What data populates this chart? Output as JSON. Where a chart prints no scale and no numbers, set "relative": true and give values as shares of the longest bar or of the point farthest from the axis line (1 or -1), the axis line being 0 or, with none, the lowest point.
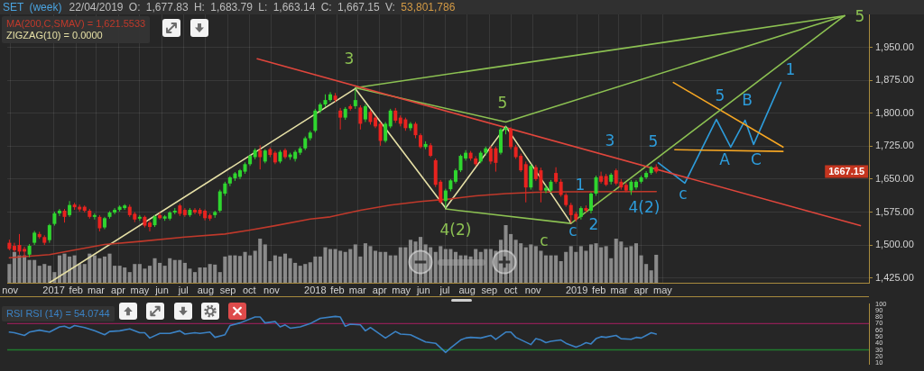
{
  "chart_data": [
    {
      "type": "candlestick",
      "title": "SET (week)",
      "subtitle": "22/04/2019 O: 1,677.83 H: 1,683.79 L: 1,663.14 C: 1,667.15 V: 53,801,786",
      "x": [
        "2016-10-31",
        "2016-11-07",
        "2016-11-14",
        "2016-11-21",
        "2016-11-28",
        "2016-12-05",
        "2016-12-12",
        "2016-12-19",
        "2016-12-26",
        "2017-01-02",
        "2017-01-09",
        "2017-01-16",
        "2017-01-23",
        "2017-01-30",
        "2017-02-06",
        "2017-02-13",
        "2017-02-20",
        "2017-02-27",
        "2017-03-06",
        "2017-03-13",
        "2017-03-20",
        "2017-03-27",
        "2017-04-03",
        "2017-04-10",
        "2017-04-17",
        "2017-04-24",
        "2017-05-01",
        "2017-05-08",
        "2017-05-15",
        "2017-05-22",
        "2017-05-29",
        "2017-06-05",
        "2017-06-12",
        "2017-06-19",
        "2017-06-26",
        "2017-07-03",
        "2017-07-10",
        "2017-07-17",
        "2017-07-24",
        "2017-07-31",
        "2017-08-07",
        "2017-08-14",
        "2017-08-21",
        "2017-08-28",
        "2017-09-04",
        "2017-09-11",
        "2017-09-18",
        "2017-09-25",
        "2017-10-02",
        "2017-10-09",
        "2017-10-16",
        "2017-10-23",
        "2017-10-30",
        "2017-11-06",
        "2017-11-13",
        "2017-11-20",
        "2017-11-27",
        "2017-12-04",
        "2017-12-11",
        "2017-12-18",
        "2017-12-25",
        "2018-01-01",
        "2018-01-08",
        "2018-01-15",
        "2018-01-22",
        "2018-01-29",
        "2018-02-05",
        "2018-02-12",
        "2018-02-19",
        "2018-02-26",
        "2018-03-05",
        "2018-03-12",
        "2018-03-19",
        "2018-03-26",
        "2018-04-02",
        "2018-04-09",
        "2018-04-16",
        "2018-04-23",
        "2018-04-30",
        "2018-05-07",
        "2018-05-14",
        "2018-05-21",
        "2018-05-28",
        "2018-06-04",
        "2018-06-11",
        "2018-06-18",
        "2018-06-25",
        "2018-07-02",
        "2018-07-09",
        "2018-07-16",
        "2018-07-23",
        "2018-07-30",
        "2018-08-06",
        "2018-08-13",
        "2018-08-20",
        "2018-08-27",
        "2018-09-03",
        "2018-09-10",
        "2018-09-17",
        "2018-09-24",
        "2018-10-01",
        "2018-10-08",
        "2018-10-15",
        "2018-10-22",
        "2018-10-29",
        "2018-11-05",
        "2018-11-12",
        "2018-11-19",
        "2018-11-26",
        "2018-12-03",
        "2018-12-10",
        "2018-12-17",
        "2018-12-24",
        "2018-12-31",
        "2019-01-07",
        "2019-01-14",
        "2019-01-21",
        "2019-01-28",
        "2019-02-04",
        "2019-02-11",
        "2019-02-18",
        "2019-02-25",
        "2019-03-04",
        "2019-03-11",
        "2019-03-18",
        "2019-03-25",
        "2019-04-01",
        "2019-04-08",
        "2019-04-15",
        "2019-04-22"
      ],
      "ohlc": [
        [
          1505,
          1512,
          1488,
          1491
        ],
        [
          1498,
          1505,
          1484,
          1488
        ],
        [
          1500,
          1525,
          1478,
          1485
        ],
        [
          1491,
          1496,
          1472,
          1485
        ],
        [
          1478,
          1502,
          1472,
          1498
        ],
        [
          1505,
          1532,
          1500,
          1528
        ],
        [
          1525,
          1530,
          1514,
          1518
        ],
        [
          1518,
          1522,
          1500,
          1505
        ],
        [
          1511,
          1548,
          1505,
          1545
        ],
        [
          1548,
          1576,
          1544,
          1572
        ],
        [
          1572,
          1582,
          1566,
          1578
        ],
        [
          1578,
          1582,
          1551,
          1564
        ],
        [
          1568,
          1600,
          1564,
          1591
        ],
        [
          1592,
          1596,
          1580,
          1586
        ],
        [
          1587,
          1592,
          1576,
          1581
        ],
        [
          1587,
          1590,
          1574,
          1578
        ],
        [
          1578,
          1582,
          1560,
          1564
        ],
        [
          1564,
          1572,
          1558,
          1568
        ],
        [
          1564,
          1568,
          1531,
          1538
        ],
        [
          1540,
          1564,
          1536,
          1561
        ],
        [
          1564,
          1577,
          1560,
          1574
        ],
        [
          1574,
          1584,
          1570,
          1580
        ],
        [
          1580,
          1590,
          1576,
          1587
        ],
        [
          1584,
          1593,
          1580,
          1590
        ],
        [
          1587,
          1592,
          1564,
          1568
        ],
        [
          1571,
          1575,
          1552,
          1558
        ],
        [
          1560,
          1568,
          1555,
          1564
        ],
        [
          1564,
          1567,
          1540,
          1544
        ],
        [
          1551,
          1555,
          1531,
          1541
        ],
        [
          1545,
          1568,
          1541,
          1565
        ],
        [
          1568,
          1574,
          1558,
          1561
        ],
        [
          1560,
          1568,
          1555,
          1565
        ],
        [
          1560,
          1577,
          1556,
          1574
        ],
        [
          1574,
          1584,
          1570,
          1578
        ],
        [
          1590,
          1594,
          1566,
          1571
        ],
        [
          1580,
          1584,
          1564,
          1568
        ],
        [
          1568,
          1584,
          1564,
          1580
        ],
        [
          1580,
          1584,
          1570,
          1574
        ],
        [
          1580,
          1584,
          1566,
          1571
        ],
        [
          1578,
          1581,
          1556,
          1561
        ],
        [
          1568,
          1572,
          1555,
          1560
        ],
        [
          1568,
          1578,
          1562,
          1575
        ],
        [
          1578,
          1626,
          1574,
          1622
        ],
        [
          1617,
          1644,
          1612,
          1640
        ],
        [
          1640,
          1657,
          1634,
          1654
        ],
        [
          1652,
          1666,
          1646,
          1663
        ],
        [
          1655,
          1673,
          1650,
          1670
        ],
        [
          1667,
          1688,
          1662,
          1684
        ],
        [
          1684,
          1706,
          1680,
          1703
        ],
        [
          1700,
          1720,
          1695,
          1716
        ],
        [
          1716,
          1727,
          1672,
          1700
        ],
        [
          1690,
          1718,
          1686,
          1715
        ],
        [
          1718,
          1722,
          1700,
          1705
        ],
        [
          1710,
          1714,
          1684,
          1688
        ],
        [
          1690,
          1716,
          1686,
          1712
        ],
        [
          1716,
          1720,
          1696,
          1700
        ],
        [
          1700,
          1710,
          1694,
          1706
        ],
        [
          1696,
          1716,
          1690,
          1712
        ],
        [
          1710,
          1724,
          1705,
          1720
        ],
        [
          1720,
          1747,
          1716,
          1743
        ],
        [
          1743,
          1760,
          1738,
          1756
        ],
        [
          1760,
          1810,
          1756,
          1806
        ],
        [
          1806,
          1824,
          1800,
          1820
        ],
        [
          1820,
          1843,
          1814,
          1830
        ],
        [
          1830,
          1848,
          1826,
          1843
        ],
        [
          1840,
          1846,
          1826,
          1830
        ],
        [
          1806,
          1812,
          1763,
          1790
        ],
        [
          1790,
          1814,
          1785,
          1810
        ],
        [
          1816,
          1820,
          1806,
          1810
        ],
        [
          1816,
          1856,
          1810,
          1830
        ],
        [
          1813,
          1818,
          1763,
          1776
        ],
        [
          1786,
          1820,
          1780,
          1816
        ],
        [
          1803,
          1808,
          1774,
          1780
        ],
        [
          1790,
          1794,
          1766,
          1770
        ],
        [
          1776,
          1780,
          1726,
          1737
        ],
        [
          1737,
          1780,
          1733,
          1776
        ],
        [
          1770,
          1810,
          1766,
          1806
        ],
        [
          1806,
          1812,
          1778,
          1783
        ],
        [
          1790,
          1795,
          1770,
          1776
        ],
        [
          1786,
          1790,
          1760,
          1766
        ],
        [
          1766,
          1780,
          1760,
          1776
        ],
        [
          1776,
          1780,
          1743,
          1750
        ],
        [
          1750,
          1754,
          1720,
          1723
        ],
        [
          1723,
          1736,
          1718,
          1730
        ],
        [
          1727,
          1732,
          1700,
          1703
        ],
        [
          1693,
          1697,
          1632,
          1637
        ],
        [
          1644,
          1648,
          1594,
          1597
        ],
        [
          1600,
          1628,
          1584,
          1624
        ],
        [
          1627,
          1650,
          1622,
          1647
        ],
        [
          1644,
          1674,
          1640,
          1670
        ],
        [
          1670,
          1706,
          1666,
          1703
        ],
        [
          1697,
          1716,
          1692,
          1710
        ],
        [
          1710,
          1714,
          1692,
          1697
        ],
        [
          1697,
          1702,
          1680,
          1684
        ],
        [
          1690,
          1714,
          1686,
          1710
        ],
        [
          1710,
          1724,
          1704,
          1720
        ],
        [
          1720,
          1726,
          1684,
          1690
        ],
        [
          1720,
          1724,
          1667,
          1687
        ],
        [
          1710,
          1766,
          1706,
          1763
        ],
        [
          1762,
          1770,
          1752,
          1767
        ],
        [
          1763,
          1768,
          1718,
          1723
        ],
        [
          1723,
          1728,
          1696,
          1700
        ],
        [
          1703,
          1708,
          1666,
          1670
        ],
        [
          1684,
          1690,
          1597,
          1631
        ],
        [
          1631,
          1684,
          1626,
          1680
        ],
        [
          1677,
          1682,
          1646,
          1650
        ],
        [
          1670,
          1676,
          1597,
          1624
        ],
        [
          1624,
          1636,
          1618,
          1630
        ],
        [
          1624,
          1648,
          1620,
          1644
        ],
        [
          1664,
          1677,
          1640,
          1644
        ],
        [
          1644,
          1650,
          1610,
          1614
        ],
        [
          1614,
          1618,
          1587,
          1591
        ],
        [
          1591,
          1596,
          1550,
          1568
        ],
        [
          1571,
          1576,
          1553,
          1558
        ],
        [
          1564,
          1588,
          1558,
          1584
        ],
        [
          1584,
          1590,
          1574,
          1578
        ],
        [
          1578,
          1620,
          1572,
          1617
        ],
        [
          1617,
          1658,
          1612,
          1654
        ],
        [
          1657,
          1667,
          1640,
          1644
        ],
        [
          1657,
          1662,
          1634,
          1637
        ],
        [
          1644,
          1664,
          1638,
          1660
        ],
        [
          1670,
          1674,
          1636,
          1640
        ],
        [
          1644,
          1650,
          1626,
          1631
        ],
        [
          1637,
          1642,
          1620,
          1624
        ],
        [
          1624,
          1648,
          1614,
          1644
        ],
        [
          1631,
          1648,
          1626,
          1644
        ],
        [
          1644,
          1658,
          1640,
          1654
        ],
        [
          1654,
          1668,
          1650,
          1664
        ],
        [
          1664,
          1680,
          1660,
          1677
        ],
        [
          1677.83,
          1683.79,
          1663.14,
          1667.15
        ]
      ],
      "colors": [
        "#e8231f",
        "#e8231f",
        "#e8231f",
        "#e8231f",
        "#2fd62f",
        "#2fd62f",
        "#e8231f",
        "#e8231f",
        "#2fd62f",
        "#2fd62f",
        "#2fd62f",
        "#e8231f",
        "#2fd62f",
        "#e8231f",
        "#e8231f",
        "#e8231f",
        "#e8231f",
        "#2fd62f",
        "#e8231f",
        "#2fd62f",
        "#2fd62f",
        "#2fd62f",
        "#2fd62f",
        "#2fd62f",
        "#e8231f",
        "#e8231f",
        "#2fd62f",
        "#e8231f",
        "#e8231f",
        "#2fd62f",
        "#e8231f",
        "#2fd62f",
        "#2fd62f",
        "#2fd62f",
        "#e8231f",
        "#e8231f",
        "#2fd62f",
        "#e8231f",
        "#e8231f",
        "#e8231f",
        "#e8231f",
        "#2fd62f",
        "#2fd62f",
        "#2fd62f",
        "#2fd62f",
        "#2fd62f",
        "#2fd62f",
        "#2fd62f",
        "#2fd62f",
        "#2fd62f",
        "#e8231f",
        "#2fd62f",
        "#e8231f",
        "#e8231f",
        "#2fd62f",
        "#e8231f",
        "#2fd62f",
        "#2fd62f",
        "#2fd62f",
        "#2fd62f",
        "#2fd62f",
        "#2fd62f",
        "#2fd62f",
        "#2fd62f",
        "#2fd62f",
        "#e8231f",
        "#e8231f",
        "#2fd62f",
        "#e8231f",
        "#2fd62f",
        "#e8231f",
        "#2fd62f",
        "#e8231f",
        "#e8231f",
        "#e8231f",
        "#2fd62f",
        "#2fd62f",
        "#e8231f",
        "#e8231f",
        "#e8231f",
        "#2fd62f",
        "#e8231f",
        "#e8231f",
        "#2fd62f",
        "#e8231f",
        "#e8231f",
        "#e8231f",
        "#2fd62f",
        "#2fd62f",
        "#2fd62f",
        "#2fd62f",
        "#2fd62f",
        "#e8231f",
        "#e8231f",
        "#2fd62f",
        "#2fd62f",
        "#e8231f",
        "#e8231f",
        "#2fd62f",
        "#2fd62f",
        "#e8231f",
        "#e8231f",
        "#e8231f",
        "#e8231f",
        "#2fd62f",
        "#e8231f",
        "#e8231f",
        "#2fd62f",
        "#2fd62f",
        "#e8231f",
        "#e8231f",
        "#e8231f",
        "#e8231f",
        "#e8231f",
        "#2fd62f",
        "#e8231f",
        "#2fd62f",
        "#2fd62f",
        "#e8231f",
        "#e8231f",
        "#2fd62f",
        "#e8231f",
        "#e8231f",
        "#e8231f",
        "#2fd62f",
        "#2fd62f",
        "#2fd62f",
        "#2fd62f",
        "#2fd62f",
        "#e8231f"
      ],
      "series": [
        {
          "type": "line",
          "name": "MA(200,C,SMAV) = 1,621.5533",
          "color": "#c0392b",
          "x": [
            "2016-10-31",
            "2016-12-26",
            "2017-03-13",
            "2017-05-01",
            "2017-07-03",
            "2017-08-28",
            "2017-10-02",
            "2017-11-06",
            "2017-12-25",
            "2018-01-22",
            "2018-03-05",
            "2018-04-16",
            "2018-05-28",
            "2018-07-09",
            "2018-08-13",
            "2018-09-24",
            "2018-11-05",
            "2018-12-17",
            "2019-04-22"
          ],
          "values": [
            1471,
            1478,
            1501,
            1508,
            1518,
            1525,
            1534,
            1544,
            1559,
            1564,
            1579,
            1591,
            1599,
            1605,
            1612,
            1617,
            1620,
            1621,
            1621.5533
          ]
        },
        {
          "type": "line",
          "name": "ZIGZAG(10) = 0.0000",
          "color": "#e6e0a6",
          "x": [
            "2016-12-26",
            "2018-02-26",
            "2018-07-02",
            "2018-09-24",
            "2018-12-24"
          ],
          "values": [
            1414,
            1856,
            1584,
            1770,
            1550
          ]
        },
        {
          "type": "line",
          "color": "#e0463c",
          "x": [
            "2017-10-12",
            "2020-02-01"
          ],
          "values": [
            1924,
            1544
          ]
        },
        {
          "type": "line",
          "color": "#8cc152",
          "x": [
            "2018-02-26",
            "2020-01-10"
          ],
          "values": [
            1858,
            2022
          ]
        },
        {
          "type": "line",
          "color": "#8cc152",
          "x": [
            "2018-02-26",
            "2018-09-24",
            "2020-01-10"
          ],
          "values": [
            1858,
            1780,
            2022
          ]
        },
        {
          "type": "line",
          "color": "#8cc152",
          "x": [
            "2018-07-02",
            "2018-12-24",
            "2020-01-10"
          ],
          "values": [
            1582,
            1549,
            2022
          ]
        },
        {
          "type": "line",
          "color": "#f5a623",
          "x": [
            "2019-05-16",
            "2019-10-16"
          ],
          "values": [
            1870,
            1723
          ]
        },
        {
          "type": "line",
          "color": "#f5a623",
          "x": [
            "2019-05-18",
            "2019-10-16"
          ],
          "values": [
            1717,
            1713
          ]
        },
        {
          "type": "line",
          "color": "#2d9cdb",
          "x": [
            "2019-04-25",
            "2019-06-01",
            "2019-07-15",
            "2019-08-04",
            "2019-08-24",
            "2019-09-05",
            "2019-10-13"
          ],
          "values": [
            1687,
            1641,
            1786,
            1723,
            1784,
            1729,
            1870
          ]
        }
      ],
      "xlim": [
        "2016-10-28",
        "2020-02-13"
      ],
      "xticks": [
        {
          "value": "2016-11-01",
          "label": "nov"
        },
        {
          "value": "2017-01-01",
          "label": "2017"
        },
        {
          "value": "2017-02-01",
          "label": "feb"
        },
        {
          "value": "2017-03-01",
          "label": "mar"
        },
        {
          "value": "2017-04-01",
          "label": "apr"
        },
        {
          "value": "2017-05-01",
          "label": "may"
        },
        {
          "value": "2017-06-01",
          "label": "jun"
        },
        {
          "value": "2017-07-01",
          "label": "jul"
        },
        {
          "value": "2017-08-01",
          "label": "aug"
        },
        {
          "value": "2017-09-01",
          "label": "sep"
        },
        {
          "value": "2017-10-01",
          "label": "oct"
        },
        {
          "value": "2017-11-01",
          "label": "nov"
        },
        {
          "value": "2018-01-01",
          "label": "2018"
        },
        {
          "value": "2018-02-01",
          "label": "feb"
        },
        {
          "value": "2018-03-01",
          "label": "mar"
        },
        {
          "value": "2018-04-01",
          "label": "apr"
        },
        {
          "value": "2018-05-01",
          "label": "may"
        },
        {
          "value": "2018-06-01",
          "label": "jun"
        },
        {
          "value": "2018-07-01",
          "label": "jul"
        },
        {
          "value": "2018-08-01",
          "label": "aug"
        },
        {
          "value": "2018-09-01",
          "label": "sep"
        },
        {
          "value": "2018-10-01",
          "label": "oct"
        },
        {
          "value": "2018-11-01",
          "label": "nov"
        },
        {
          "value": "2019-01-01",
          "label": "2019"
        },
        {
          "value": "2019-02-01",
          "label": "feb"
        },
        {
          "value": "2019-03-01",
          "label": "mar"
        },
        {
          "value": "2019-04-01",
          "label": "apr"
        },
        {
          "value": "2019-05-01",
          "label": "may"
        }
      ],
      "ylim": [
        1414,
        2025
      ],
      "yticks": [
        {
          "value": 1425,
          "label": "1,425.00"
        },
        {
          "value": 1500,
          "label": "1,500.00"
        },
        {
          "value": 1575,
          "label": "1,575.00"
        },
        {
          "value": 1650,
          "label": "1,650.00"
        },
        {
          "value": 1725,
          "label": "1,725.00"
        },
        {
          "value": 1800,
          "label": "1,800.00"
        },
        {
          "value": 1875,
          "label": "1,875.00"
        },
        {
          "value": 1950,
          "label": "1,950.00"
        }
      ],
      "grid": true,
      "legend": "top left",
      "annotations": [
        "3",
        "5",
        "4(2)",
        "c",
        "5",
        "1",
        "c",
        "2",
        "3",
        "4(2)",
        "5",
        "c",
        "5",
        "B",
        "A",
        "C",
        "1",
        "1667.15"
      ]
    },
    {
      "type": "bar",
      "relative": true,
      "color": "#8a8a8a",
      "tick_labels": false,
      "xlim": [
        "2016-10-28",
        "2020-02-13"
      ],
      "x": [
        "2016-10-31",
        "2016-11-07",
        "2016-11-14",
        "2016-11-21",
        "2016-11-28",
        "2016-12-05",
        "2016-12-12",
        "2016-12-19",
        "2016-12-26",
        "2017-01-02",
        "2017-01-09",
        "2017-01-16",
        "2017-01-23",
        "2017-01-30",
        "2017-02-06",
        "2017-02-13",
        "2017-02-20",
        "2017-02-27",
        "2017-03-06",
        "2017-03-13",
        "2017-03-20",
        "2017-03-27",
        "2017-04-03",
        "2017-04-10",
        "2017-04-17",
        "2017-04-24",
        "2017-05-01",
        "2017-05-08",
        "2017-05-15",
        "2017-05-22",
        "2017-05-29",
        "2017-06-05",
        "2017-06-12",
        "2017-06-19",
        "2017-06-26",
        "2017-07-03",
        "2017-07-10",
        "2017-07-17",
        "2017-07-24",
        "2017-07-31",
        "2017-08-07",
        "2017-08-14",
        "2017-08-21",
        "2017-08-28",
        "2017-09-04",
        "2017-09-11",
        "2017-09-18",
        "2017-09-25",
        "2017-10-02",
        "2017-10-09",
        "2017-10-16",
        "2017-10-23",
        "2017-10-30",
        "2017-11-06",
        "2017-11-13",
        "2017-11-20",
        "2017-11-27",
        "2017-12-04",
        "2017-12-11",
        "2017-12-18",
        "2017-12-25",
        "2018-01-01",
        "2018-01-08",
        "2018-01-15",
        "2018-01-22",
        "2018-01-29",
        "2018-02-05",
        "2018-02-12",
        "2018-02-19",
        "2018-02-26",
        "2018-03-05",
        "2018-03-12",
        "2018-03-19",
        "2018-03-26",
        "2018-04-02",
        "2018-04-09",
        "2018-04-16",
        "2018-04-23",
        "2018-04-30",
        "2018-05-07",
        "2018-05-14",
        "2018-05-21",
        "2018-05-28",
        "2018-06-04",
        "2018-06-11",
        "2018-06-18",
        "2018-06-25",
        "2018-07-02",
        "2018-07-09",
        "2018-07-16",
        "2018-07-23",
        "2018-07-30",
        "2018-08-06",
        "2018-08-13",
        "2018-08-20",
        "2018-08-27",
        "2018-09-03",
        "2018-09-10",
        "2018-09-17",
        "2018-09-24",
        "2018-10-01",
        "2018-10-08",
        "2018-10-15",
        "2018-10-22",
        "2018-10-29",
        "2018-11-05",
        "2018-11-12",
        "2018-11-19",
        "2018-11-26",
        "2018-12-03",
        "2018-12-10",
        "2018-12-17",
        "2018-12-24",
        "2018-12-31",
        "2019-01-07",
        "2019-01-14",
        "2019-01-21",
        "2019-01-28",
        "2019-02-04",
        "2019-02-11",
        "2019-02-18",
        "2019-02-25",
        "2019-03-04",
        "2019-03-11",
        "2019-03-18",
        "2019-03-25",
        "2019-04-01",
        "2019-04-08",
        "2019-04-15",
        "2019-04-22"
      ],
      "values": [
        0.32,
        0.53,
        0.47,
        0.47,
        0.39,
        0.39,
        0.29,
        0.32,
        0.29,
        0.18,
        0.47,
        0.5,
        0.45,
        0.47,
        0.32,
        0.32,
        0.5,
        0.47,
        0.42,
        0.45,
        0.5,
        0.29,
        0.29,
        0.26,
        0.18,
        0.32,
        0.32,
        0.24,
        0.29,
        0.42,
        0.34,
        0.29,
        0.42,
        0.39,
        0.39,
        0.34,
        0.24,
        0.18,
        0.26,
        0.26,
        0.32,
        0.31,
        0.18,
        0.45,
        0.47,
        0.47,
        0.46,
        0.53,
        0.47,
        0.55,
        0.76,
        0.66,
        0.37,
        0.47,
        0.45,
        0.5,
        0.42,
        0.34,
        0.29,
        0.32,
        0.35,
        0.45,
        0.45,
        0.61,
        0.58,
        0.58,
        0.55,
        0.53,
        0.58,
        0.66,
        0.45,
        0.68,
        0.63,
        0.55,
        0.53,
        0.53,
        0.47,
        0.47,
        0.61,
        0.61,
        0.74,
        0.71,
        0.79,
        0.66,
        0.61,
        0.53,
        0.63,
        0.58,
        0.58,
        0.53,
        0.47,
        0.47,
        0.45,
        0.58,
        0.53,
        0.58,
        0.58,
        0.55,
        0.74,
        1,
        0.84,
        0.74,
        0.68,
        0.61,
        0.66,
        0.63,
        0.55,
        0.47,
        0.47,
        0.47,
        0.37,
        0.53,
        0.63,
        0.53,
        0.63,
        0.55,
        0.66,
        0.68,
        0.61,
        0.63,
        0.42,
        0.76,
        0.71,
        0.61,
        0.63,
        0.68,
        0.47,
        0.32,
        0.21,
        0.48
      ]
    },
    {
      "type": "line",
      "tick_labels": "y",
      "legend": "top left",
      "xlim": [
        "2016-10-28",
        "2020-02-13"
      ],
      "ylim": [
        8,
        100
      ],
      "yticks": [
        10,
        20,
        30,
        40,
        50,
        60,
        70,
        80,
        90,
        100
      ],
      "ref_lines": [
        {
          "axis": "y",
          "value": 70,
          "color": "#8e1f55"
        },
        {
          "axis": "y",
          "value": 30,
          "color": "#207a2e"
        }
      ],
      "series": [
        {
          "name": "RSI RSI (14) = 54.0744",
          "color": "#3b82c4",
          "x": [
            "2016-10-31",
            "2016-11-07",
            "2016-11-21",
            "2016-11-28",
            "2016-12-12",
            "2016-12-26",
            "2017-01-09",
            "2017-01-16",
            "2017-01-23",
            "2017-01-30",
            "2017-02-13",
            "2017-02-27",
            "2017-03-13",
            "2017-03-20",
            "2017-04-03",
            "2017-04-17",
            "2017-05-01",
            "2017-05-08",
            "2017-05-15",
            "2017-05-29",
            "2017-06-12",
            "2017-06-26",
            "2017-07-03",
            "2017-07-17",
            "2017-07-24",
            "2017-08-07",
            "2017-08-14",
            "2017-08-28",
            "2017-09-04",
            "2017-09-18",
            "2017-10-09",
            "2017-10-16",
            "2017-10-23",
            "2017-11-06",
            "2017-11-13",
            "2017-11-20",
            "2017-11-27",
            "2017-12-11",
            "2017-12-25",
            "2018-01-08",
            "2018-01-29",
            "2018-02-05",
            "2018-02-12",
            "2018-02-19",
            "2018-03-05",
            "2018-03-12",
            "2018-03-19",
            "2018-04-09",
            "2018-04-23",
            "2018-04-30",
            "2018-05-14",
            "2018-06-04",
            "2018-06-18",
            "2018-07-02",
            "2018-07-09",
            "2018-07-23",
            "2018-07-30",
            "2018-08-06",
            "2018-08-20",
            "2018-09-03",
            "2018-09-10",
            "2018-09-24",
            "2018-10-01",
            "2018-10-08",
            "2018-10-29",
            "2018-11-05",
            "2018-11-12",
            "2018-11-19",
            "2018-11-26",
            "2018-12-10",
            "2018-12-17",
            "2018-12-31",
            "2019-01-07",
            "2019-01-14",
            "2019-01-21",
            "2019-01-28",
            "2019-02-04",
            "2019-02-11",
            "2019-02-25",
            "2019-03-04",
            "2019-03-18",
            "2019-03-25",
            "2019-04-01",
            "2019-04-08",
            "2019-04-15",
            "2019-04-22"
          ],
          "values": [
            57,
            56,
            52,
            57,
            60,
            57,
            65,
            66,
            63,
            67,
            64,
            59,
            53,
            58,
            59,
            62,
            56,
            56,
            48,
            55,
            55,
            59,
            54,
            56,
            55,
            57,
            49,
            53,
            67,
            71,
            80,
            80,
            71,
            73,
            65,
            68,
            63,
            65,
            70,
            78,
            81,
            80,
            66,
            69,
            68,
            59,
            64,
            48,
            58,
            54,
            53,
            42,
            40,
            26,
            33,
            45,
            48,
            49,
            48,
            52,
            46,
            57,
            57,
            49,
            38,
            47,
            45,
            41,
            43,
            45,
            40,
            34,
            37,
            41,
            39,
            47,
            50,
            49,
            52,
            47,
            46,
            49,
            48,
            52,
            56,
            54.0744
          ]
        }
      ]
    }
  ]
}
